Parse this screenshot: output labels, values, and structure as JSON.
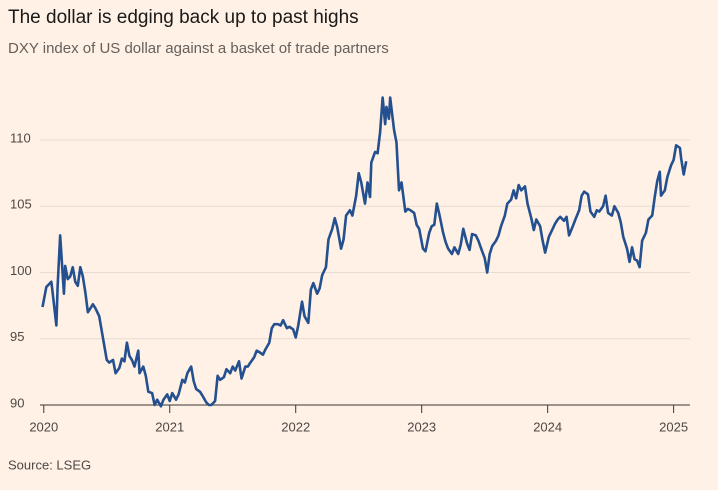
{
  "chart_data": {
    "type": "line",
    "title": "The dollar is edging back up to past highs",
    "subtitle": "DXY index of US dollar against a basket of trade partners",
    "source": "Source: LSEG",
    "color": "#24508f",
    "grid": true,
    "xlim": [
      2019.97,
      2025.13
    ],
    "xticks": [
      2020,
      2021,
      2022,
      2023,
      2024,
      2025
    ],
    "ylim": [
      89.4,
      114
    ],
    "yticks": [
      90,
      95,
      100,
      105,
      110
    ],
    "x": [
      2019.99,
      2020.02,
      2020.06,
      2020.07,
      2020.1,
      2020.11,
      2020.13,
      2020.16,
      2020.17,
      2020.19,
      2020.21,
      2020.23,
      2020.25,
      2020.27,
      2020.29,
      2020.31,
      2020.33,
      2020.35,
      2020.37,
      2020.39,
      2020.41,
      2020.44,
      2020.46,
      2020.48,
      2020.5,
      2020.52,
      2020.55,
      2020.57,
      2020.6,
      2020.62,
      2020.64,
      2020.66,
      2020.68,
      2020.7,
      2020.72,
      2020.75,
      2020.76,
      2020.79,
      2020.81,
      2020.83,
      2020.86,
      2020.88,
      2020.9,
      2020.93,
      2020.95,
      2020.98,
      2021.0,
      2021.02,
      2021.05,
      2021.07,
      2021.1,
      2021.12,
      2021.14,
      2021.17,
      2021.19,
      2021.21,
      2021.24,
      2021.26,
      2021.29,
      2021.31,
      2021.33,
      2021.36,
      2021.38,
      2021.4,
      2021.43,
      2021.45,
      2021.48,
      2021.5,
      2021.52,
      2021.55,
      2021.57,
      2021.6,
      2021.62,
      2021.64,
      2021.67,
      2021.69,
      2021.71,
      2021.74,
      2021.76,
      2021.79,
      2021.81,
      2021.83,
      2021.86,
      2021.88,
      2021.9,
      2021.93,
      2021.95,
      2021.98,
      2022.0,
      2022.02,
      2022.05,
      2022.07,
      2022.1,
      2022.12,
      2022.14,
      2022.17,
      2022.19,
      2022.21,
      2022.24,
      2022.26,
      2022.29,
      2022.31,
      2022.33,
      2022.36,
      2022.38,
      2022.4,
      2022.43,
      2022.45,
      2022.48,
      2022.5,
      2022.52,
      2022.55,
      2022.57,
      2022.59,
      2022.6,
      2022.63,
      2022.65,
      2022.67,
      2022.69,
      2022.71,
      2022.72,
      2022.74,
      2022.75,
      2022.78,
      2022.8,
      2022.82,
      2022.84,
      2022.87,
      2022.89,
      2022.91,
      2022.94,
      2022.96,
      2022.98,
      2023.01,
      2023.03,
      2023.06,
      2023.08,
      2023.1,
      2023.12,
      2023.14,
      2023.17,
      2023.19,
      2023.21,
      2023.24,
      2023.26,
      2023.29,
      2023.31,
      2023.33,
      2023.36,
      2023.38,
      2023.4,
      2023.43,
      2023.45,
      2023.48,
      2023.5,
      2023.52,
      2023.54,
      2023.56,
      2023.59,
      2023.61,
      2023.63,
      2023.66,
      2023.68,
      2023.71,
      2023.73,
      2023.75,
      2023.77,
      2023.79,
      2023.82,
      2023.84,
      2023.87,
      2023.89,
      2023.91,
      2023.94,
      2023.96,
      2023.98,
      2024.01,
      2024.03,
      2024.06,
      2024.08,
      2024.1,
      2024.13,
      2024.15,
      2024.17,
      2024.2,
      2024.22,
      2024.25,
      2024.27,
      2024.29,
      2024.32,
      2024.34,
      2024.37,
      2024.39,
      2024.41,
      2024.44,
      2024.46,
      2024.48,
      2024.51,
      2024.53,
      2024.56,
      2024.58,
      2024.6,
      2024.63,
      2024.65,
      2024.67,
      2024.69,
      2024.71,
      2024.73,
      2024.75,
      2024.78,
      2024.8,
      2024.83,
      2024.85,
      2024.87,
      2024.89,
      2024.9,
      2024.93,
      2024.95,
      2024.98,
      2025.0,
      2025.02,
      2025.05,
      2025.06,
      2025.08,
      2025.1
    ],
    "values": [
      97.4,
      98.9,
      99.3,
      98.5,
      96.0,
      99.0,
      102.8,
      98.4,
      100.5,
      99.5,
      99.7,
      100.4,
      99.3,
      99.0,
      100.4,
      99.7,
      98.5,
      97.0,
      97.3,
      97.6,
      97.3,
      96.7,
      95.6,
      94.5,
      93.4,
      93.2,
      93.4,
      92.4,
      92.8,
      93.5,
      93.3,
      94.7,
      93.7,
      93.4,
      92.9,
      94.1,
      92.4,
      92.9,
      92.2,
      91.0,
      90.9,
      90.0,
      90.4,
      89.9,
      90.4,
      90.8,
      90.3,
      90.9,
      90.4,
      90.8,
      91.9,
      91.7,
      92.4,
      92.9,
      91.8,
      91.2,
      91.0,
      90.7,
      90.2,
      90.0,
      90.0,
      90.3,
      92.2,
      91.9,
      92.1,
      92.7,
      92.4,
      92.9,
      92.6,
      93.3,
      92.0,
      92.9,
      92.9,
      93.2,
      93.6,
      94.1,
      94.0,
      93.8,
      94.2,
      94.7,
      95.8,
      96.1,
      96.1,
      96.0,
      96.4,
      95.8,
      95.9,
      95.7,
      95.1,
      96.0,
      97.8,
      96.7,
      96.2,
      98.7,
      99.2,
      98.4,
      98.8,
      99.8,
      100.4,
      102.5,
      103.3,
      104.1,
      103.4,
      101.8,
      102.5,
      104.3,
      104.7,
      104.3,
      105.8,
      107.5,
      106.8,
      105.2,
      106.8,
      105.7,
      108.3,
      109.1,
      109.0,
      110.6,
      113.2,
      111.2,
      112.5,
      111.6,
      113.2,
      110.8,
      109.8,
      106.2,
      106.8,
      104.6,
      104.8,
      104.7,
      104.5,
      103.6,
      103.3,
      101.8,
      101.6,
      103.0,
      103.5,
      103.6,
      105.2,
      104.4,
      103.0,
      102.3,
      101.8,
      101.4,
      101.9,
      101.4,
      102.1,
      103.3,
      102.2,
      101.7,
      102.9,
      102.8,
      102.4,
      101.6,
      101.1,
      100.0,
      101.4,
      102.0,
      102.4,
      102.8,
      103.5,
      104.3,
      105.2,
      105.5,
      106.2,
      105.6,
      106.6,
      106.2,
      106.5,
      105.2,
      104.1,
      103.2,
      104.0,
      103.5,
      102.4,
      101.5,
      102.7,
      103.1,
      103.7,
      104.0,
      104.2,
      103.9,
      104.2,
      102.8,
      103.5,
      104.0,
      104.7,
      105.8,
      106.1,
      105.9,
      104.6,
      104.2,
      104.7,
      104.6,
      105.0,
      105.8,
      104.5,
      104.3,
      105.0,
      104.5,
      103.8,
      102.7,
      101.8,
      100.8,
      101.9,
      101.0,
      100.9,
      100.4,
      102.4,
      103.0,
      104.0,
      104.3,
      105.7,
      106.9,
      107.6,
      105.8,
      106.2,
      107.2,
      108.1,
      108.5,
      109.6,
      109.4,
      108.6,
      107.4,
      108.4
    ]
  }
}
